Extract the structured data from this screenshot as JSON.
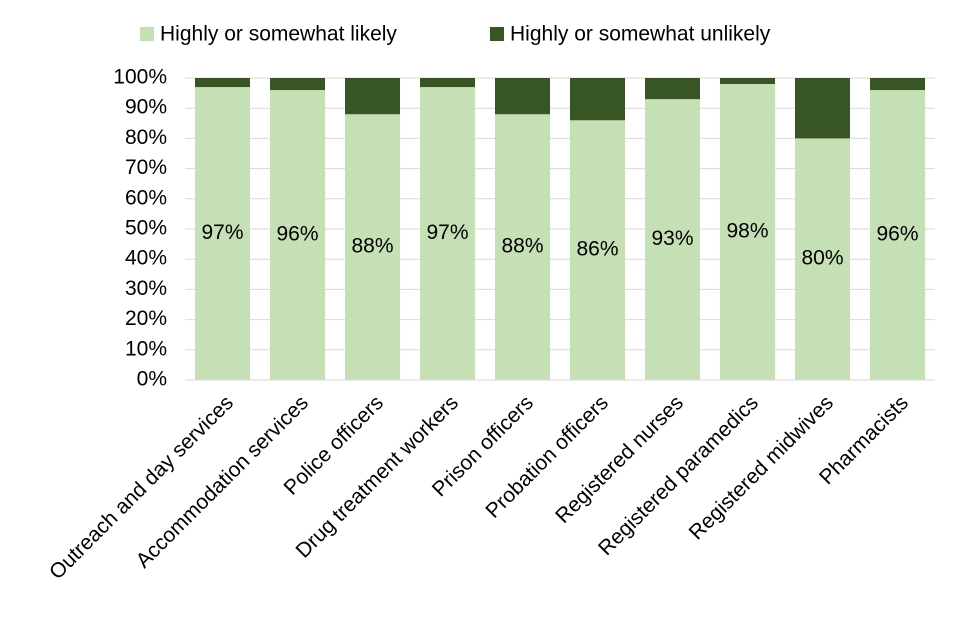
{
  "chart_data": {
    "type": "stacked-bar",
    "categories": [
      "Outreach and day services",
      "Accommodation services",
      "Police officers",
      "Drug treatment workers",
      "Prison officers",
      "Probation officers",
      "Registered nurses",
      "Registered paramedics",
      "Registered midwives",
      "Pharmacists"
    ],
    "series": [
      {
        "name": "Highly or somewhat likely",
        "color": "#c5e0b4",
        "values": [
          97,
          96,
          88,
          97,
          88,
          86,
          93,
          98,
          80,
          96
        ],
        "value_labels": [
          "97%",
          "96%",
          "88%",
          "97%",
          "88%",
          "86%",
          "93%",
          "98%",
          "80%",
          "96%"
        ]
      },
      {
        "name": "Highly or somewhat unlikely",
        "color": "#375623",
        "values": [
          3,
          4,
          12,
          3,
          12,
          14,
          7,
          2,
          20,
          4
        ]
      }
    ],
    "ylim": [
      0,
      100
    ],
    "yticks": [
      {
        "value": 0,
        "label": "0%"
      },
      {
        "value": 10,
        "label": "10%"
      },
      {
        "value": 20,
        "label": "20%"
      },
      {
        "value": 30,
        "label": "30%"
      },
      {
        "value": 40,
        "label": "40%"
      },
      {
        "value": 50,
        "label": "50%"
      },
      {
        "value": 60,
        "label": "60%"
      },
      {
        "value": 70,
        "label": "70%"
      },
      {
        "value": 80,
        "label": "80%"
      },
      {
        "value": 90,
        "label": "90%"
      },
      {
        "value": 100,
        "label": "100%"
      }
    ],
    "grid": true,
    "legend": "top"
  }
}
